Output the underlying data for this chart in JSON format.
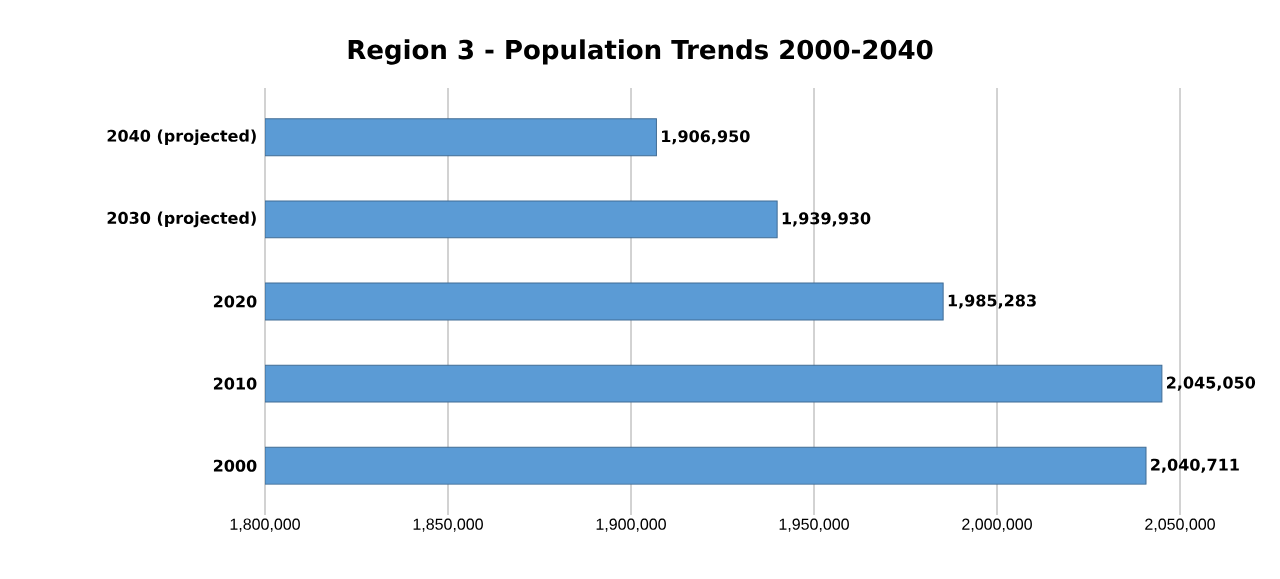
{
  "chart_data": {
    "type": "bar",
    "orientation": "horizontal",
    "title": "Region 3 - Population Trends 2000-2040",
    "categories": [
      "2040 (projected)",
      "2030 (projected)",
      "2020",
      "2010",
      "2000"
    ],
    "values": [
      1906950,
      1939930,
      1985283,
      2045050,
      2040711
    ],
    "value_labels": [
      "1,906,950",
      "1,939,930",
      "1,985,283",
      "2,045,050",
      "2,040,711"
    ],
    "color": "#5b9bd5",
    "xlim": [
      1800000,
      2050000
    ],
    "xticks": [
      {
        "value": 1800000,
        "label": "1,800,000"
      },
      {
        "value": 1850000,
        "label": "1,850,000"
      },
      {
        "value": 1900000,
        "label": "1,900,000"
      },
      {
        "value": 1950000,
        "label": "1,950,000"
      },
      {
        "value": 2000000,
        "label": "2,000,000"
      },
      {
        "value": 2050000,
        "label": "2,050,000"
      }
    ],
    "grid": "x"
  }
}
